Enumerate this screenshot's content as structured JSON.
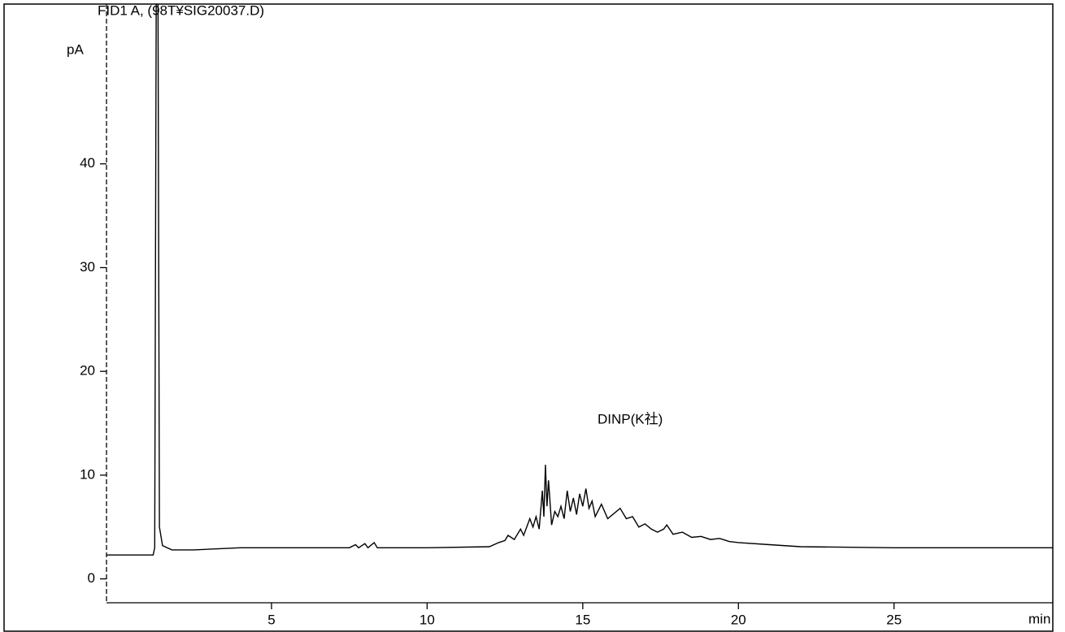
{
  "chart_data": {
    "type": "line",
    "title": "FID1 A, (98T¥SIG20037.D)",
    "y_label": "pA",
    "x_label": "min",
    "annotation": "DINP(K社)",
    "x": [
      -0.3,
      1.2,
      1.25,
      1.3,
      1.35,
      1.4,
      1.5,
      1.8,
      2.5,
      4,
      7.5,
      7.7,
      7.8,
      8.0,
      8.1,
      8.3,
      8.4,
      10,
      12,
      12.3,
      12.5,
      12.6,
      12.8,
      13.0,
      13.1,
      13.3,
      13.4,
      13.5,
      13.6,
      13.7,
      13.75,
      13.8,
      13.85,
      13.9,
      14.0,
      14.1,
      14.2,
      14.3,
      14.4,
      14.5,
      14.6,
      14.7,
      14.8,
      14.9,
      15.0,
      15.1,
      15.2,
      15.3,
      15.4,
      15.6,
      15.8,
      16.0,
      16.2,
      16.4,
      16.6,
      16.8,
      17.0,
      17.2,
      17.4,
      17.6,
      17.7,
      17.9,
      18.2,
      18.5,
      18.8,
      19.1,
      19.4,
      19.7,
      20.0,
      21,
      22,
      25,
      30.1
    ],
    "series": [
      {
        "color": "#000000",
        "values": [
          2.3,
          2.3,
          3,
          60,
          60,
          5,
          3.2,
          2.8,
          2.8,
          3.0,
          3.0,
          3.3,
          3.0,
          3.4,
          3.0,
          3.5,
          3.0,
          3.0,
          3.1,
          3.5,
          3.7,
          4.2,
          3.8,
          4.8,
          4.2,
          5.8,
          5.0,
          6.0,
          4.8,
          8.5,
          6.0,
          11.0,
          7.0,
          9.5,
          5.2,
          6.5,
          6.0,
          7.0,
          5.8,
          8.5,
          6.5,
          7.8,
          6.2,
          8.2,
          7.0,
          8.7,
          6.8,
          7.5,
          6.0,
          7.2,
          5.8,
          6.3,
          6.8,
          5.8,
          6.0,
          5.0,
          5.3,
          4.8,
          4.5,
          4.8,
          5.2,
          4.3,
          4.5,
          4.0,
          4.1,
          3.8,
          3.9,
          3.6,
          3.5,
          3.3,
          3.1,
          3.0,
          3.0
        ]
      }
    ],
    "xlim": [
      -0.3,
      30.1
    ],
    "ylim": [
      -2.3,
      55.4
    ],
    "xticks": [
      5,
      10,
      15,
      20,
      25
    ],
    "yticks": [
      0,
      10,
      20,
      30,
      40
    ]
  }
}
